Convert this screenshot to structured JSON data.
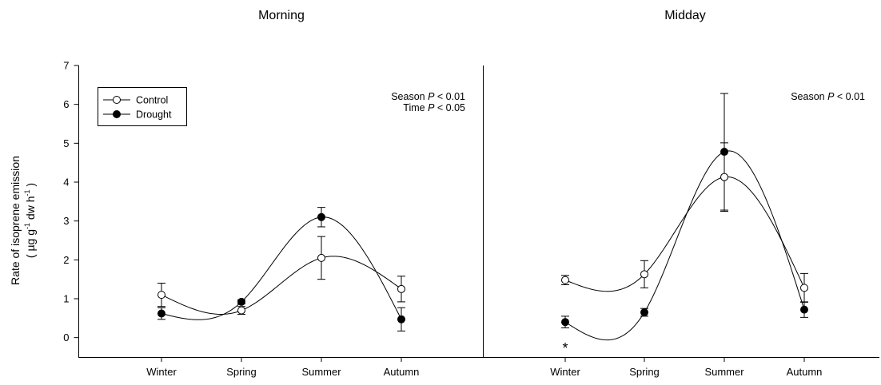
{
  "chart_data": {
    "type": "line",
    "ylabel_line1": "Rate of isoprene emission",
    "ylabel_line2_parts": [
      "( µg g",
      "-1",
      " dw h",
      "-1",
      " )"
    ],
    "ylim": [
      -0.5,
      7
    ],
    "yticks": [
      "0",
      "1",
      "2",
      "3",
      "4",
      "5",
      "6",
      "7"
    ],
    "categories": [
      "Winter",
      "Spring",
      "Summer",
      "Autumn"
    ],
    "legend": {
      "position": "top-left",
      "items": [
        {
          "label": "Control",
          "marker": "open-circle"
        },
        {
          "label": "Drought",
          "marker": "filled-circle"
        }
      ]
    },
    "panels": [
      {
        "title": "Morning",
        "annotations": [
          {
            "prefix": "Season ",
            "italic": "P",
            "suffix": " < 0.01"
          },
          {
            "prefix": "Time ",
            "italic": "P",
            "suffix": " < 0.05"
          }
        ],
        "significance": [],
        "series": [
          {
            "name": "Control",
            "marker": "open-circle",
            "values": [
              1.1,
              0.7,
              2.05,
              1.25
            ],
            "errors": [
              0.3,
              0.1,
              0.55,
              0.33
            ]
          },
          {
            "name": "Drought",
            "marker": "filled-circle",
            "values": [
              0.62,
              0.92,
              3.1,
              0.47
            ],
            "errors": [
              0.15,
              0.05,
              0.25,
              0.3
            ]
          }
        ]
      },
      {
        "title": "Midday",
        "annotations": [
          {
            "prefix": "Season ",
            "italic": "P",
            "suffix": " < 0.01"
          }
        ],
        "significance": [
          {
            "category": "Winter",
            "text": "*"
          }
        ],
        "series": [
          {
            "name": "Control",
            "marker": "open-circle",
            "values": [
              1.48,
              1.63,
              4.13,
              1.28
            ],
            "errors": [
              0.12,
              0.35,
              0.88,
              0.37
            ]
          },
          {
            "name": "Drought",
            "marker": "filled-circle",
            "values": [
              0.4,
              0.65,
              4.78,
              0.72
            ],
            "errors": [
              0.15,
              0.1,
              1.5,
              0.2
            ]
          }
        ]
      }
    ]
  }
}
